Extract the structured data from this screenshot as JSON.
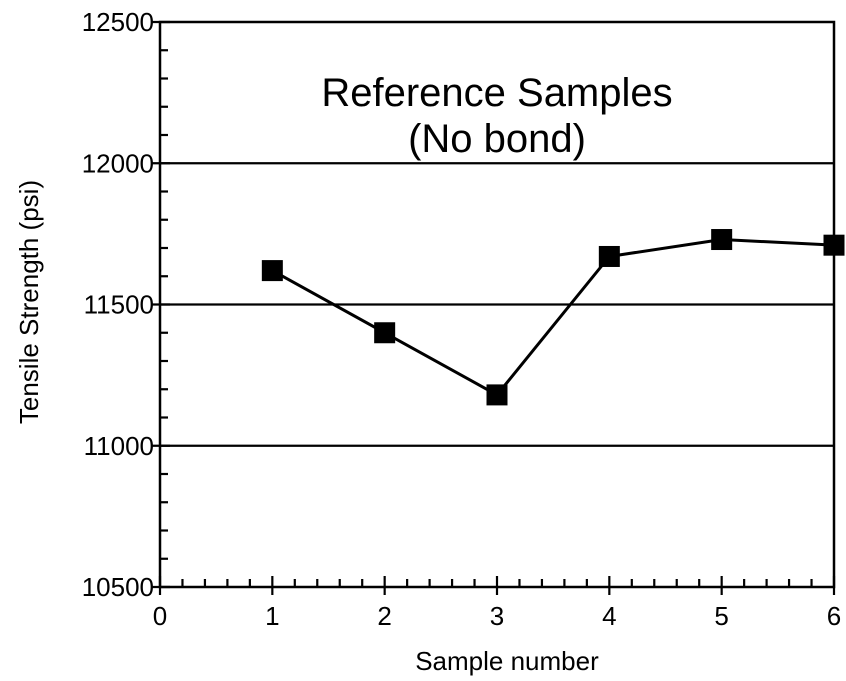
{
  "chart_data": {
    "type": "line",
    "title": "Reference Samples",
    "subtitle": "(No bond)",
    "xlabel": "Sample number",
    "ylabel": "Tensile Strength (psi)",
    "xlim": [
      0,
      6
    ],
    "ylim": [
      10500,
      12500
    ],
    "x_ticks": [
      0,
      1,
      2,
      3,
      4,
      5,
      6
    ],
    "x_tick_labels": [
      "0",
      "1",
      "2",
      "3",
      "4",
      "5",
      "6"
    ],
    "y_ticks": [
      10500,
      11000,
      11500,
      12000,
      12500
    ],
    "y_tick_labels": [
      "10500",
      "11000",
      "11500",
      "12000",
      "12500"
    ],
    "grid": "horizontal",
    "gridlines_y": [
      11000,
      11500,
      12000
    ],
    "legend": "none",
    "series": [
      {
        "x": [
          1,
          2,
          3,
          4,
          5,
          6
        ],
        "y": [
          11620,
          11400,
          11180,
          11670,
          11730,
          11710
        ],
        "marker": "square",
        "color": "#000000"
      }
    ]
  }
}
